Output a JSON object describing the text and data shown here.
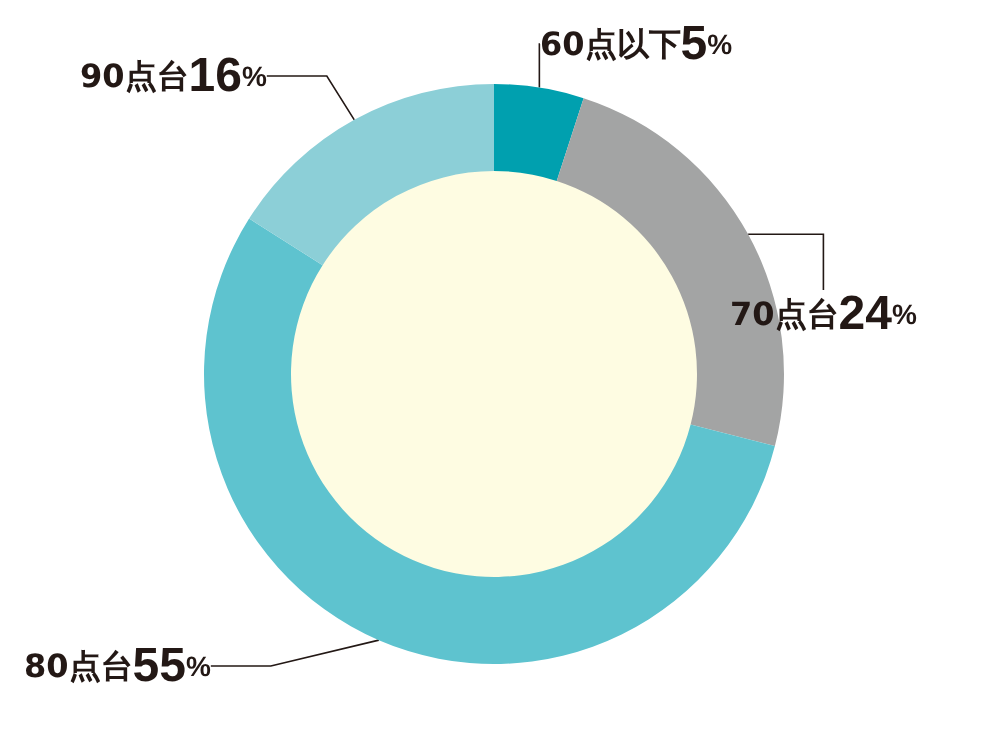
{
  "chart_data": {
    "type": "donut",
    "categories": [
      "60点以下",
      "70点台",
      "80点台",
      "90点台"
    ],
    "values": [
      5,
      24,
      55,
      16
    ],
    "value_labels": [
      "5%",
      "24%",
      "55%",
      "16%"
    ],
    "colors": [
      "#00a0af",
      "#a3a4a4",
      "#5ec3cf",
      "#8ccfd7"
    ],
    "legend": false
  }
}
